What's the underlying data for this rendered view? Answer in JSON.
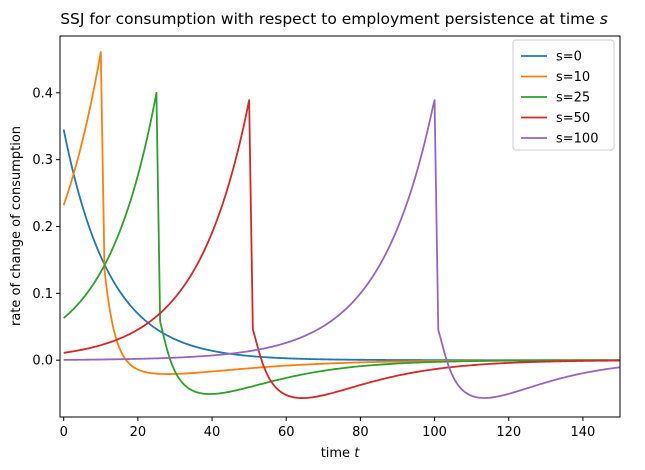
{
  "chart_data": {
    "type": "line",
    "title": "SSJ for consumption with respect to employment persistence at time",
    "title_var": "s",
    "xlabel": "time",
    "xlabel_var": "t",
    "ylabel": "rate of change of consumption",
    "xlim": [
      -1,
      150
    ],
    "ylim": [
      -0.085,
      0.485
    ],
    "xticks": [
      0,
      20,
      40,
      60,
      80,
      100,
      120,
      140
    ],
    "yticks": [
      0.0,
      0.1,
      0.2,
      0.3,
      0.4
    ],
    "ytick_labels": [
      "0.0",
      "0.1",
      "0.2",
      "0.3",
      "0.4"
    ],
    "legend_position": "top-right",
    "series": [
      {
        "name": "s=0",
        "color": "#1f77b4",
        "s": 0,
        "peak": 0.345,
        "post_dip": 0.0,
        "dip_depth": 0.0
      },
      {
        "name": "s=10",
        "color": "#ff7f0e",
        "s": 10,
        "start": 0.232,
        "peak": 0.461,
        "post": 0.135,
        "dip_depth": -0.021,
        "dip_at": 27
      },
      {
        "name": "s=25",
        "color": "#2ca02c",
        "s": 25,
        "start": 0.063,
        "peak": 0.4,
        "post": 0.058,
        "dip_depth": -0.051,
        "dip_at": 39
      },
      {
        "name": "s=50",
        "color": "#d62728",
        "s": 50,
        "start": 0.011,
        "peak": 0.389,
        "post": 0.046,
        "dip_depth": -0.057,
        "dip_at": 64
      },
      {
        "name": "s=100",
        "color": "#9467bd",
        "s": 100,
        "start": 0.0,
        "peak": 0.389,
        "post": 0.045,
        "dip_depth": -0.057,
        "dip_at": 113
      }
    ]
  }
}
